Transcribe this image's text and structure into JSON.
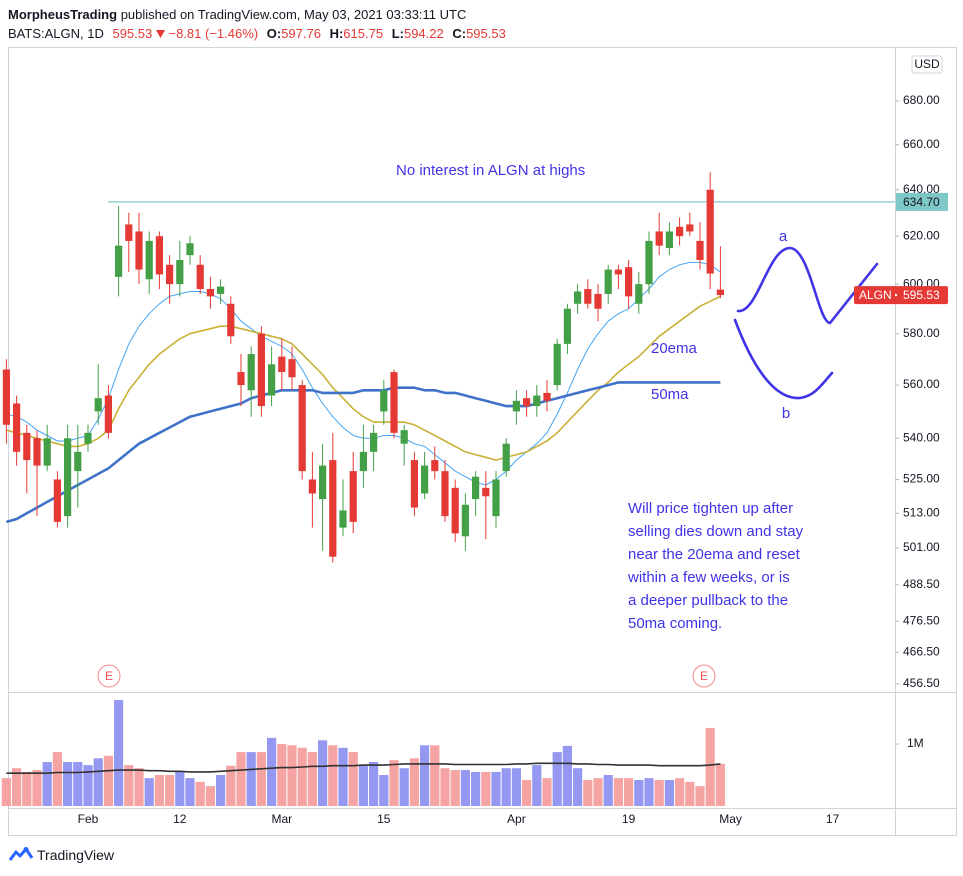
{
  "header": {
    "author": "MorpheusTrading",
    "published": "published on TradingView.com, May 03, 2021 03:33:11 UTC",
    "symbol": "BATS:ALGN, 1D",
    "change": "−8.81 (−1.46%)",
    "fields": [
      "O:",
      "H:",
      "L:",
      "C:"
    ],
    "brand": "TradingView"
  },
  "chart_data": {
    "type": "candlestick",
    "currency": "USD",
    "symbol_label": "ALGN",
    "log_scale": true,
    "grid": false,
    "ylim": [
      454,
      705.6
    ],
    "yticks": [
      {
        "value": 680,
        "label": "680.00"
      },
      {
        "value": 660,
        "label": "660.00"
      },
      {
        "value": 640,
        "label": "640.00"
      },
      {
        "value": 620,
        "label": "620.00"
      },
      {
        "value": 600,
        "label": "600.00"
      },
      {
        "value": 580,
        "label": "580.00"
      },
      {
        "value": 560,
        "label": "560.00"
      },
      {
        "value": 540,
        "label": "540.00"
      },
      {
        "value": 525,
        "label": "525.00"
      },
      {
        "value": 513,
        "label": "513.00"
      },
      {
        "value": 501,
        "label": "501.00"
      },
      {
        "value": 488.5,
        "label": "488.50"
      },
      {
        "value": 476.5,
        "label": "476.50"
      },
      {
        "value": 466.5,
        "label": "466.50"
      },
      {
        "value": 456.5,
        "label": "456.50"
      }
    ],
    "categories": [
      null,
      null,
      null,
      null,
      null,
      null,
      null,
      null,
      "Feb",
      null,
      null,
      null,
      null,
      null,
      null,
      null,
      null,
      "12",
      null,
      null,
      null,
      null,
      null,
      null,
      null,
      null,
      null,
      "Mar",
      null,
      null,
      null,
      null,
      null,
      null,
      null,
      null,
      null,
      "15",
      null,
      null,
      null,
      null,
      null,
      null,
      null,
      null,
      null,
      null,
      null,
      null,
      "Apr",
      null,
      null,
      null,
      null,
      null,
      null,
      null,
      null,
      null,
      null,
      "19",
      null,
      null,
      null,
      null,
      null,
      null,
      null,
      null,
      null,
      "May",
      null,
      null,
      null,
      null,
      null,
      null,
      null,
      null,
      null,
      "17",
      null,
      null,
      null,
      null,
      null
    ],
    "up_color": "#43a047",
    "down_color": "#e53935",
    "open": [
      566,
      553,
      542,
      540,
      530,
      525,
      512,
      528,
      538,
      550,
      556,
      603,
      625,
      622,
      602,
      620,
      608,
      600,
      612,
      608,
      598,
      596,
      592,
      565,
      558,
      580,
      556,
      571,
      570,
      560,
      525,
      518,
      532,
      508,
      528,
      528,
      535,
      550,
      565,
      538,
      532,
      520,
      532,
      528,
      522,
      505,
      518,
      522,
      512,
      528,
      550,
      555,
      552,
      557,
      560,
      576,
      592,
      598,
      596,
      596,
      606,
      607,
      592,
      600,
      622,
      615,
      624,
      625,
      618,
      640,
      597.76,
      null,
      null,
      null,
      null,
      null,
      null,
      null,
      null,
      null,
      null,
      null,
      null,
      null,
      null,
      null,
      null
    ],
    "high": [
      570,
      556,
      545,
      543,
      545,
      528,
      545,
      545,
      545,
      568,
      560,
      633,
      630,
      630,
      622,
      622,
      612,
      618,
      620,
      612,
      603,
      602,
      595,
      572,
      575,
      583,
      575,
      578,
      575,
      562,
      535,
      538,
      542,
      525,
      535,
      545,
      545,
      562,
      566,
      545,
      535,
      535,
      537,
      532,
      525,
      520,
      528,
      528,
      528,
      540,
      558,
      558,
      560,
      562,
      578,
      592,
      600,
      602,
      600,
      608,
      608,
      610,
      605,
      622,
      630,
      626,
      628,
      630,
      626,
      647.7,
      615.75,
      null,
      null,
      null,
      null,
      null,
      null,
      null,
      null,
      null,
      null,
      null,
      null,
      null,
      null,
      null,
      null
    ],
    "low": [
      538,
      530,
      520,
      512,
      528,
      508,
      508,
      515,
      535,
      545,
      540,
      595,
      605,
      600,
      596,
      598,
      592,
      595,
      608,
      596,
      590,
      592,
      576,
      552,
      548,
      548,
      552,
      558,
      558,
      525,
      508,
      500,
      496,
      505,
      506,
      522,
      528,
      545,
      540,
      530,
      512,
      518,
      525,
      510,
      503,
      500,
      512,
      504,
      508,
      526,
      545,
      548,
      548,
      550,
      558,
      572,
      588,
      590,
      585,
      592,
      598,
      590,
      588,
      596,
      612,
      612,
      616,
      620,
      606,
      598,
      594.22,
      null,
      null,
      null,
      null,
      null,
      null,
      null,
      null,
      null,
      null,
      null,
      null,
      null,
      null,
      null,
      null
    ],
    "close": [
      545,
      535,
      532,
      530,
      540,
      510,
      540,
      535,
      542,
      555,
      542,
      616,
      618,
      606,
      618,
      604,
      600,
      610,
      617,
      598,
      595,
      599,
      579,
      560,
      572,
      552,
      568,
      565,
      563,
      528,
      520,
      530,
      498,
      514,
      510,
      535,
      542,
      558,
      542,
      543,
      515,
      530,
      528,
      512,
      506,
      516,
      526,
      519,
      525,
      538,
      554,
      552,
      556,
      554,
      576,
      590,
      597,
      592,
      590,
      606,
      604,
      595,
      600,
      618,
      616,
      622,
      620,
      622,
      610,
      604.34,
      595.53,
      null,
      null,
      null,
      null,
      null,
      null,
      null,
      null,
      null,
      null,
      null,
      null,
      null,
      null,
      null,
      null
    ],
    "lines": [
      {
        "color": "#42a5f5",
        "width": 1,
        "values": [
          549,
          548,
          546,
          543,
          541,
          539,
          539,
          540,
          541,
          547,
          555,
          566,
          576,
          583,
          588,
          592,
          595,
          596,
          597,
          597,
          596,
          594,
          590,
          585,
          582,
          579,
          577,
          575,
          572,
          566,
          559,
          553,
          548,
          544,
          541,
          540,
          540,
          541,
          541,
          540,
          538,
          537,
          534,
          531,
          528,
          526,
          524,
          523,
          525,
          528,
          532,
          535,
          538,
          542,
          549,
          557,
          566,
          574,
          580,
          585,
          588,
          590,
          594,
          598,
          603,
          606,
          608,
          609,
          609,
          608,
          605,
          null,
          null,
          null,
          null,
          null,
          null,
          null,
          null,
          null,
          null,
          null,
          null,
          null,
          null,
          null,
          null
        ]
      },
      {
        "color": "#c9b037",
        "width": 1.6,
        "values": [
          543,
          542,
          541,
          540,
          539,
          538,
          537,
          537,
          538,
          540,
          543,
          551,
          558,
          563,
          568,
          572,
          575,
          578,
          580,
          581,
          582,
          583,
          583,
          582,
          581,
          580,
          579,
          578,
          576,
          572,
          568,
          564,
          559,
          555,
          551,
          548,
          546,
          546,
          546,
          546,
          545,
          543,
          541,
          539,
          537,
          535,
          534,
          533,
          532,
          533,
          534,
          535,
          537,
          539,
          542,
          546,
          550,
          554,
          558,
          561,
          565,
          568,
          571,
          575,
          579,
          582,
          585,
          588,
          591,
          593,
          595,
          null,
          null,
          null,
          null,
          null,
          null,
          null,
          null,
          null,
          null,
          null,
          null,
          null,
          null,
          null,
          null
        ]
      },
      {
        "color": "#3f73c9",
        "width": 2.6,
        "values": [
          510,
          511,
          513,
          515,
          517,
          519,
          521,
          523,
          525,
          527,
          529,
          532,
          535,
          538,
          540,
          542,
          544,
          546,
          548,
          549,
          550,
          551,
          552,
          553,
          555,
          556,
          557,
          558,
          558,
          558,
          558,
          557,
          557,
          557,
          557,
          558,
          558,
          558,
          559,
          559,
          559,
          558,
          558,
          557,
          557,
          556,
          555,
          554,
          553,
          552,
          552,
          552,
          553,
          554,
          555,
          556,
          557,
          558,
          559,
          560,
          561,
          561,
          561,
          561,
          561,
          561,
          561,
          561,
          561,
          561,
          561,
          null,
          null,
          null,
          null,
          null,
          null,
          null,
          null,
          null,
          null,
          null,
          null,
          null,
          null,
          null,
          null
        ]
      }
    ],
    "hline": {
      "value": 634.7,
      "label": "634.70",
      "color": "#7ec8c8"
    },
    "earnings": [
      "E",
      "E"
    ],
    "annotations": {
      "title": "No interest in ALGN at highs",
      "ema20": "20ema",
      "ma50": "50ma",
      "a": "a",
      "b": "b",
      "note": [
        "Will price tighten up after",
        "selling dies down and stay",
        "near the 20ema and reset",
        "within a few weeks, or is",
        "a deeper pullback to the",
        "50ma coming."
      ]
    },
    "volume": {
      "ylim": [
        0,
        1840000
      ],
      "yticks": [
        {
          "value": 1000000,
          "label": "1M"
        }
      ],
      "up_color": "#9598f0",
      "down_color": "#f5a3a3",
      "values": [
        450000,
        610000,
        550000,
        580000,
        710000,
        870000,
        710000,
        710000,
        660000,
        770000,
        810000,
        1710000,
        660000,
        610000,
        450000,
        500000,
        500000,
        550000,
        450000,
        390000,
        320000,
        500000,
        650000,
        870000,
        870000,
        870000,
        1100000,
        1000000,
        980000,
        940000,
        870000,
        1060000,
        980000,
        940000,
        870000,
        660000,
        710000,
        500000,
        740000,
        610000,
        770000,
        980000,
        980000,
        610000,
        580000,
        580000,
        550000,
        550000,
        550000,
        610000,
        610000,
        420000,
        660000,
        450000,
        870000,
        970000,
        610000,
        420000,
        450000,
        500000,
        450000,
        450000,
        420000,
        450000,
        420000,
        420000,
        450000,
        390000,
        320000,
        1260000,
        680000,
        null,
        null,
        null,
        null,
        null,
        null,
        null,
        null,
        null,
        null,
        null,
        null,
        null,
        null,
        null,
        null
      ],
      "ma": {
        "color": "#333333",
        "values": [
          530000,
          530000,
          530000,
          530000,
          530000,
          540000,
          540000,
          540000,
          550000,
          560000,
          570000,
          580000,
          580000,
          580000,
          570000,
          570000,
          560000,
          560000,
          550000,
          550000,
          550000,
          560000,
          570000,
          580000,
          590000,
          600000,
          610000,
          620000,
          620000,
          630000,
          640000,
          640000,
          650000,
          650000,
          650000,
          660000,
          660000,
          660000,
          670000,
          680000,
          680000,
          680000,
          680000,
          680000,
          670000,
          670000,
          670000,
          670000,
          670000,
          670000,
          680000,
          680000,
          690000,
          690000,
          690000,
          690000,
          680000,
          680000,
          670000,
          670000,
          660000,
          660000,
          660000,
          660000,
          650000,
          650000,
          650000,
          650000,
          650000,
          660000,
          680000,
          null,
          null,
          null,
          null,
          null,
          null,
          null,
          null,
          null,
          null,
          null,
          null,
          null,
          null,
          null,
          null
        ]
      }
    }
  }
}
